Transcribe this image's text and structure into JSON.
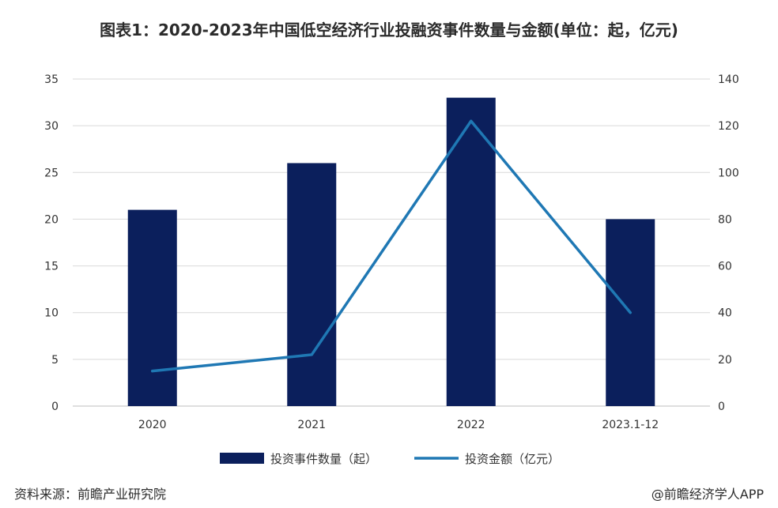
{
  "title": "图表1：2020-2023年中国低空经济行业投融资事件数量与金额(单位：起，亿元)",
  "source": "资料来源：前瞻产业研究院",
  "credit": "@前瞻经济学人APP",
  "chart_data": {
    "type": "bar",
    "categories": [
      "2020",
      "2021",
      "2022",
      "2023.1-12"
    ],
    "series": [
      {
        "name": "投资事件数量（起）",
        "type": "bar",
        "axis": "left",
        "color": "#0b1f5c",
        "values": [
          21,
          26,
          33,
          20
        ]
      },
      {
        "name": "投资金额（亿元）",
        "type": "line",
        "axis": "right",
        "color": "#1f78b4",
        "values": [
          15,
          22,
          122,
          40
        ]
      }
    ],
    "y_left": {
      "min": 0,
      "max": 35,
      "ticks": [
        0,
        5,
        10,
        15,
        20,
        25,
        30,
        35
      ]
    },
    "y_right": {
      "min": 0,
      "max": 140,
      "ticks": [
        0,
        20,
        40,
        60,
        80,
        100,
        120,
        140
      ]
    },
    "grid": true,
    "legend_position": "bottom"
  }
}
